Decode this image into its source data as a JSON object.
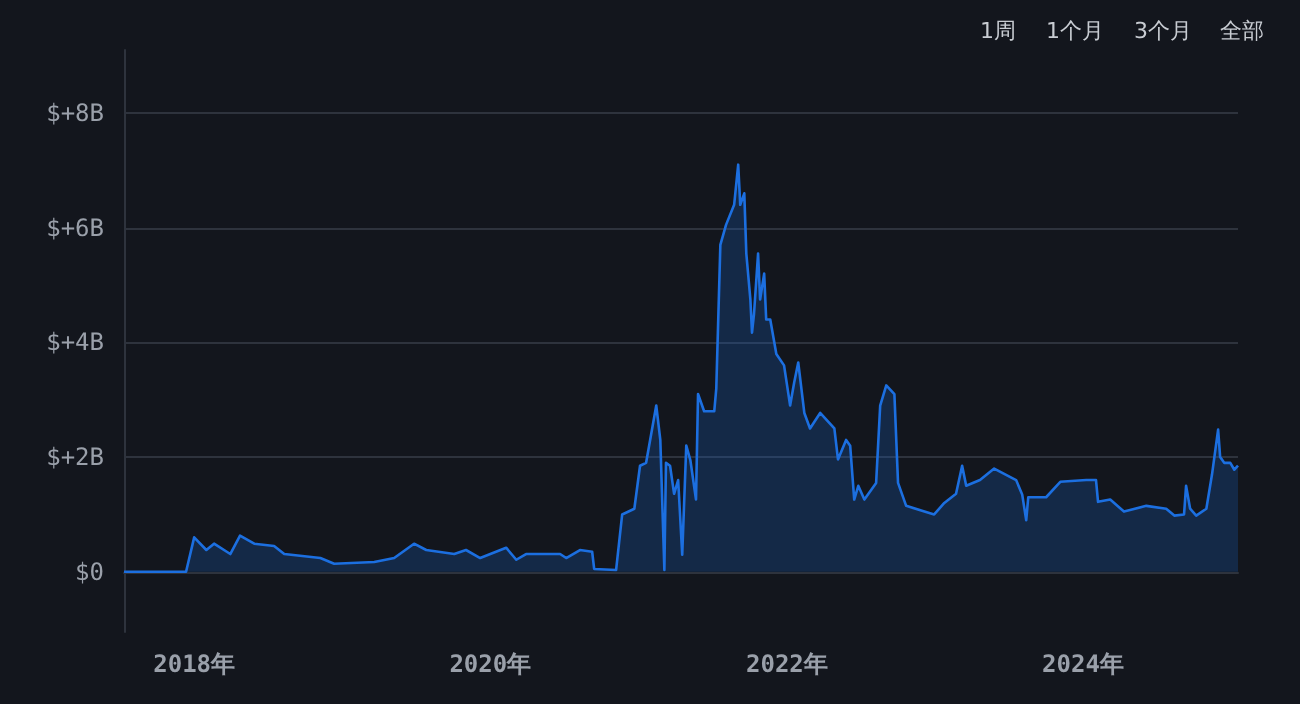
{
  "chart_data": {
    "type": "area",
    "annotations": [
      "1周",
      "1个月",
      "3个月",
      "全部"
    ],
    "x": [
      "2017-07-12",
      "2017-12-12",
      "2018-01-01",
      "2018-01-31",
      "2018-02-19",
      "2018-03-31",
      "2018-04-24",
      "2018-05-29",
      "2018-07-17",
      "2018-08-11",
      "2018-11-08",
      "2018-12-12",
      "2019-03-21",
      "2019-05-09",
      "2019-06-27",
      "2019-07-27",
      "2019-10-04",
      "2019-11-02",
      "2019-12-07",
      "2020-02-09",
      "2020-03-05",
      "2020-03-29",
      "2020-06-21",
      "2020-07-06",
      "2020-08-09",
      "2020-09-08",
      "2020-09-13",
      "2020-11-06",
      "2020-11-21",
      "2020-12-21",
      "2021-01-04",
      "2021-01-19",
      "2021-02-13",
      "2021-02-23",
      "2021-03-05",
      "2021-03-09",
      "2021-03-19",
      "2021-03-29",
      "2021-04-08",
      "2021-04-18",
      "2021-04-28",
      "2021-05-08",
      "2021-05-22",
      "2021-05-27",
      "2021-06-11",
      "2021-07-06",
      "2021-07-11",
      "2021-07-21",
      "2021-08-04",
      "2021-08-24",
      "2021-09-03",
      "2021-09-08",
      "2021-09-18",
      "2021-09-23",
      "2021-10-03",
      "2021-10-07",
      "2021-10-12",
      "2021-10-22",
      "2021-10-27",
      "2021-11-06",
      "2021-11-11",
      "2021-11-21",
      "2021-12-06",
      "2021-12-25",
      "2022-01-09",
      "2022-01-19",
      "2022-01-29",
      "2022-02-13",
      "2022-02-27",
      "2022-03-24",
      "2022-04-28",
      "2022-05-07",
      "2022-05-27",
      "2022-06-06",
      "2022-06-16",
      "2022-06-26",
      "2022-07-11",
      "2022-08-09",
      "2022-08-19",
      "2022-09-03",
      "2022-09-23",
      "2022-10-02",
      "2022-10-22",
      "2022-12-30",
      "2023-01-24",
      "2023-02-22",
      "2023-03-09",
      "2023-03-19",
      "2023-04-22",
      "2023-05-27",
      "2023-07-20",
      "2023-08-04",
      "2023-08-14",
      "2023-08-19",
      "2023-10-02",
      "2023-11-06",
      "2024-01-09",
      "2024-02-02",
      "2024-02-07",
      "2024-03-08",
      "2024-04-11",
      "2024-06-05",
      "2024-07-24",
      "2024-08-13",
      "2024-09-06",
      "2024-09-11",
      "2024-09-21",
      "2024-10-06",
      "2024-10-31",
      "2024-11-14",
      "2024-11-29",
      "2024-12-04",
      "2024-12-14",
      "2024-12-29",
      "2025-01-08",
      "2025-01-17"
    ],
    "series": [
      {
        "color": "#1c6fe0",
        "values": [
          0,
          0,
          0.6,
          0.38,
          0.49,
          0.31,
          0.63,
          0.49,
          0.45,
          0.31,
          0.24,
          0.14,
          0.17,
          0.24,
          0.49,
          0.38,
          0.31,
          0.38,
          0.24,
          0.42,
          0.21,
          0.31,
          0.31,
          0.24,
          0.38,
          0.35,
          0.05,
          0.03,
          1.0,
          1.1,
          1.85,
          1.9,
          2.9,
          2.3,
          0.03,
          1.9,
          1.85,
          1.36,
          1.6,
          0.3,
          2.2,
          1.95,
          1.26,
          3.1,
          2.8,
          2.8,
          3.2,
          5.7,
          6.05,
          6.4,
          7.1,
          6.4,
          6.6,
          5.55,
          4.75,
          4.17,
          4.5,
          5.55,
          4.75,
          5.2,
          4.4,
          4.4,
          3.8,
          3.6,
          2.9,
          3.3,
          3.65,
          2.77,
          2.5,
          2.77,
          2.5,
          1.96,
          2.3,
          2.2,
          1.26,
          1.5,
          1.26,
          1.55,
          2.9,
          3.25,
          3.1,
          1.55,
          1.15,
          1.0,
          1.2,
          1.36,
          1.85,
          1.5,
          1.6,
          1.8,
          1.6,
          1.35,
          0.9,
          1.3,
          1.3,
          1.57,
          1.6,
          1.6,
          1.22,
          1.26,
          1.05,
          1.15,
          1.1,
          0.98,
          1.0,
          1.5,
          1.1,
          0.98,
          1.1,
          1.7,
          2.48,
          2.0,
          1.9,
          1.9,
          1.78,
          1.85
        ]
      }
    ],
    "xlim": [
      "2017-07-12",
      "2025-01-17"
    ],
    "xticks": [
      {
        "value": "2018-01-01",
        "label": "2018年"
      },
      {
        "value": "2020-01-01",
        "label": "2020年"
      },
      {
        "value": "2022-01-01",
        "label": "2022年"
      },
      {
        "value": "2024-01-01",
        "label": "2024年"
      }
    ],
    "ylim": [
      -1.05,
      9.1
    ],
    "yticks": [
      {
        "value": 0,
        "label": "$0"
      },
      {
        "value": 2,
        "label": "$+2B"
      },
      {
        "value": 4,
        "label": "$+4B"
      },
      {
        "value": 6,
        "label": "$+6B"
      },
      {
        "value": 8,
        "label": "$+8B"
      }
    ],
    "grid": "y",
    "marker": "none",
    "line_style": "solid"
  }
}
